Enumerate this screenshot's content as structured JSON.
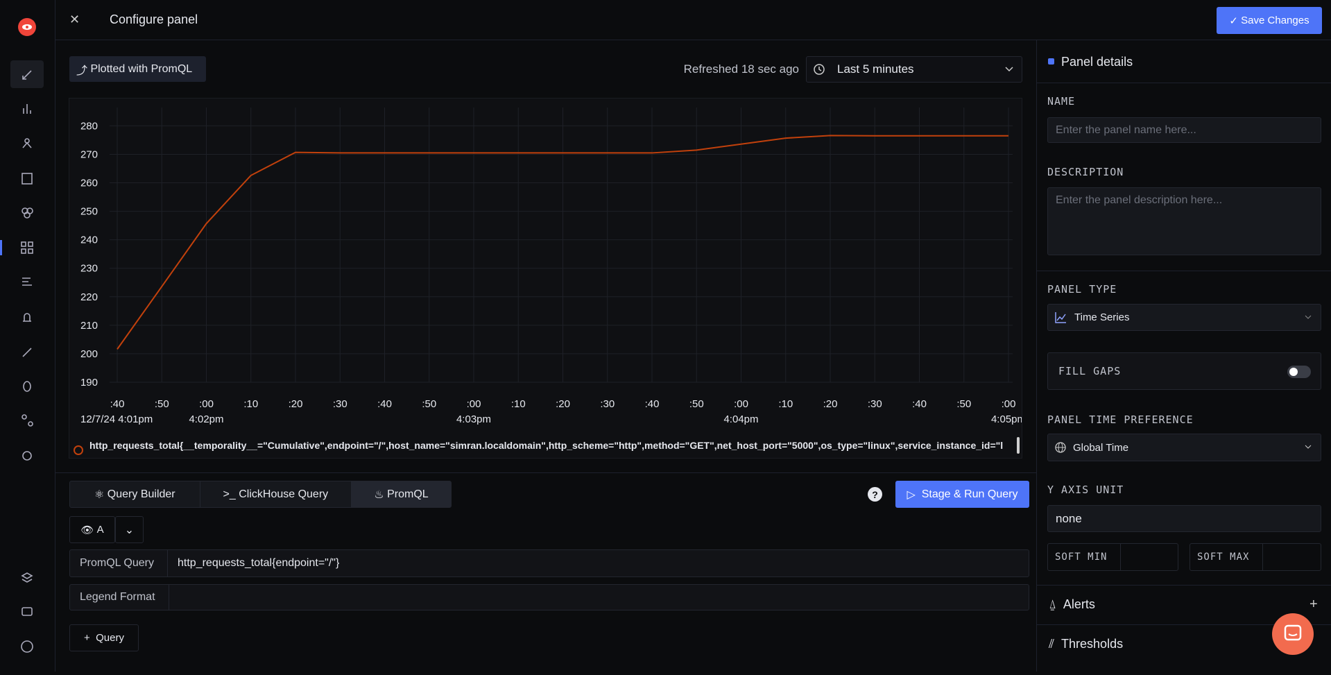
{
  "header": {
    "title": "Configure panel",
    "save_button": "Save Changes"
  },
  "toolbar": {
    "plotted_with": "Plotted with",
    "query_language": "PromQL",
    "refreshed": "Refreshed 18 sec ago",
    "time_range": "Last 5 minutes"
  },
  "chart_data": {
    "type": "line",
    "categories": [
      ":40",
      ":50",
      ":00",
      ":10",
      ":20",
      ":30",
      ":40",
      ":50",
      ":00",
      ":10",
      ":20",
      ":30",
      ":40",
      ":50",
      ":00",
      ":10",
      ":20",
      ":30",
      ":40",
      ":50",
      ":00"
    ],
    "category_sublabels": [
      "12/7/24 4:01pm",
      null,
      "4:02pm",
      null,
      null,
      null,
      null,
      null,
      "4:03pm",
      null,
      null,
      null,
      null,
      null,
      "4:04pm",
      null,
      null,
      null,
      null,
      null,
      "4:05pm"
    ],
    "series": [
      {
        "name": "http_requests_total{__temporality__=\"Cumulative\",endpoint=\"/\",host_name=\"simran.localdomain\",http_scheme=\"http\",method=\"GET\",net_host_port=\"5000\",os_type=\"linux\",service_instance_id=\"l",
        "color": "#c2410c",
        "values": [
          201.6,
          223.6,
          245.7,
          262.6,
          270.7,
          270.5,
          270.5,
          270.5,
          270.5,
          270.5,
          270.5,
          270.5,
          270.5,
          271.5,
          273.6,
          275.7,
          276.6,
          276.5,
          276.5,
          276.5,
          276.5
        ]
      }
    ],
    "ylim": [
      190,
      284
    ],
    "yticks": [
      190,
      200,
      210,
      220,
      230,
      240,
      250,
      260,
      270,
      280
    ],
    "grid": true
  },
  "query_tabs": [
    "Query Builder",
    "ClickHouse Query",
    "PromQL"
  ],
  "help_icon": "?",
  "stage_button": "Stage & Run Query",
  "query": {
    "name": "A",
    "promql_label": "PromQL Query",
    "promql_value": "http_requests_total{endpoint=\"/\"}",
    "legend_label": "Legend Format",
    "add_button": "Query"
  },
  "panel": {
    "title": "Panel details",
    "name_label": "NAME",
    "name_placeholder": "Enter the panel name here...",
    "description_label": "DESCRIPTION",
    "description_placeholder": "Enter the panel description here...",
    "panel_type_label": "PANEL TYPE",
    "panel_type": "Time Series",
    "fill_gaps_label": "FILL GAPS",
    "time_preference_label": "PANEL TIME PREFERENCE",
    "time_preference": "Global Time",
    "y_axis_unit_label": "Y AXIS UNIT",
    "y_axis_unit": "none",
    "soft_min_label": "SOFT MIN",
    "soft_max_label": "SOFT MAX",
    "alerts": "Alerts",
    "thresholds": "Thresholds"
  }
}
